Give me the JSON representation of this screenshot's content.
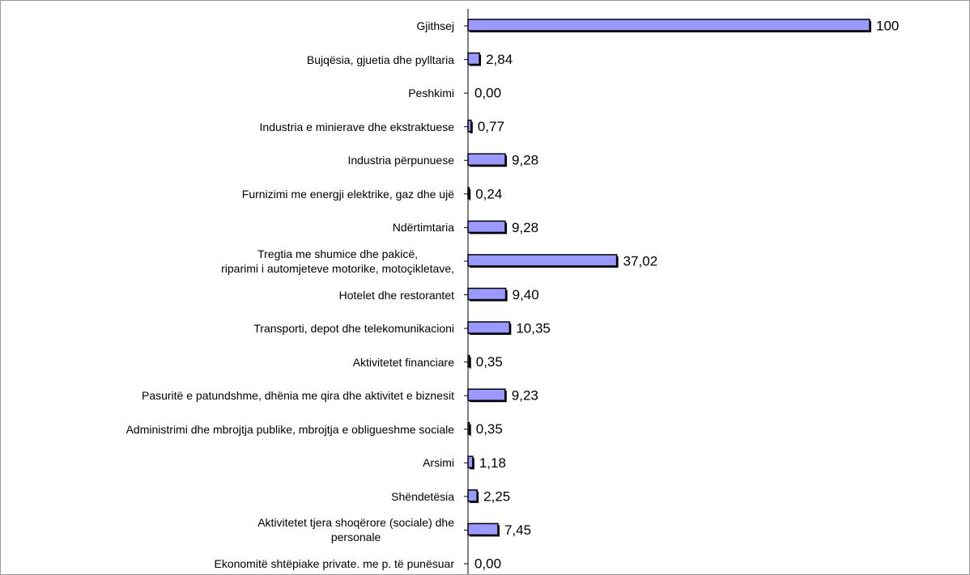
{
  "chart_data": {
    "type": "bar",
    "orientation": "horizontal",
    "categories": [
      "Gjithsej",
      "Bujqësia, gjuetia dhe pylltaria",
      "Peshkimi",
      "Industria e minierave dhe ekstraktuese",
      "Industria përpunuese",
      "Furnizimi me energji elektrike, gaz dhe ujë",
      "Ndërtimtaria",
      "Tregtia me shumice dhe pakicë,\nriparimi i automjeteve motorike, motoçikletave,",
      "Hotelet dhe restorantet",
      "Transporti, depot dhe telekomunikacioni",
      "Aktivitetet financiare",
      "Pasuritë e patundshme, dhënia me qira dhe aktivitet e biznesit",
      "Administrimi dhe mbrojtja publike, mbrojtja e obligueshme sociale",
      "Arsimi",
      "Shëndetësia",
      "Aktivitetet tjera shoqërore (sociale) dhe\npersonale",
      "Ekonomitë shtëpiake private. me p. të punësuar"
    ],
    "values": [
      100,
      2.84,
      0,
      0.77,
      9.28,
      0.24,
      9.28,
      37.02,
      9.4,
      10.35,
      0.35,
      9.23,
      0.35,
      1.18,
      2.25,
      7.45,
      0
    ],
    "value_labels": [
      "100",
      "2,84",
      "0,00",
      "0,77",
      "9,28",
      "0,24",
      "9,28",
      "37,02",
      "9,40",
      "10,35",
      "0,35",
      "9,23",
      "0,35",
      "1,18",
      "2,25",
      "7,45",
      "0,00"
    ],
    "color": "#9999ff",
    "xlim": [
      0,
      100
    ]
  }
}
